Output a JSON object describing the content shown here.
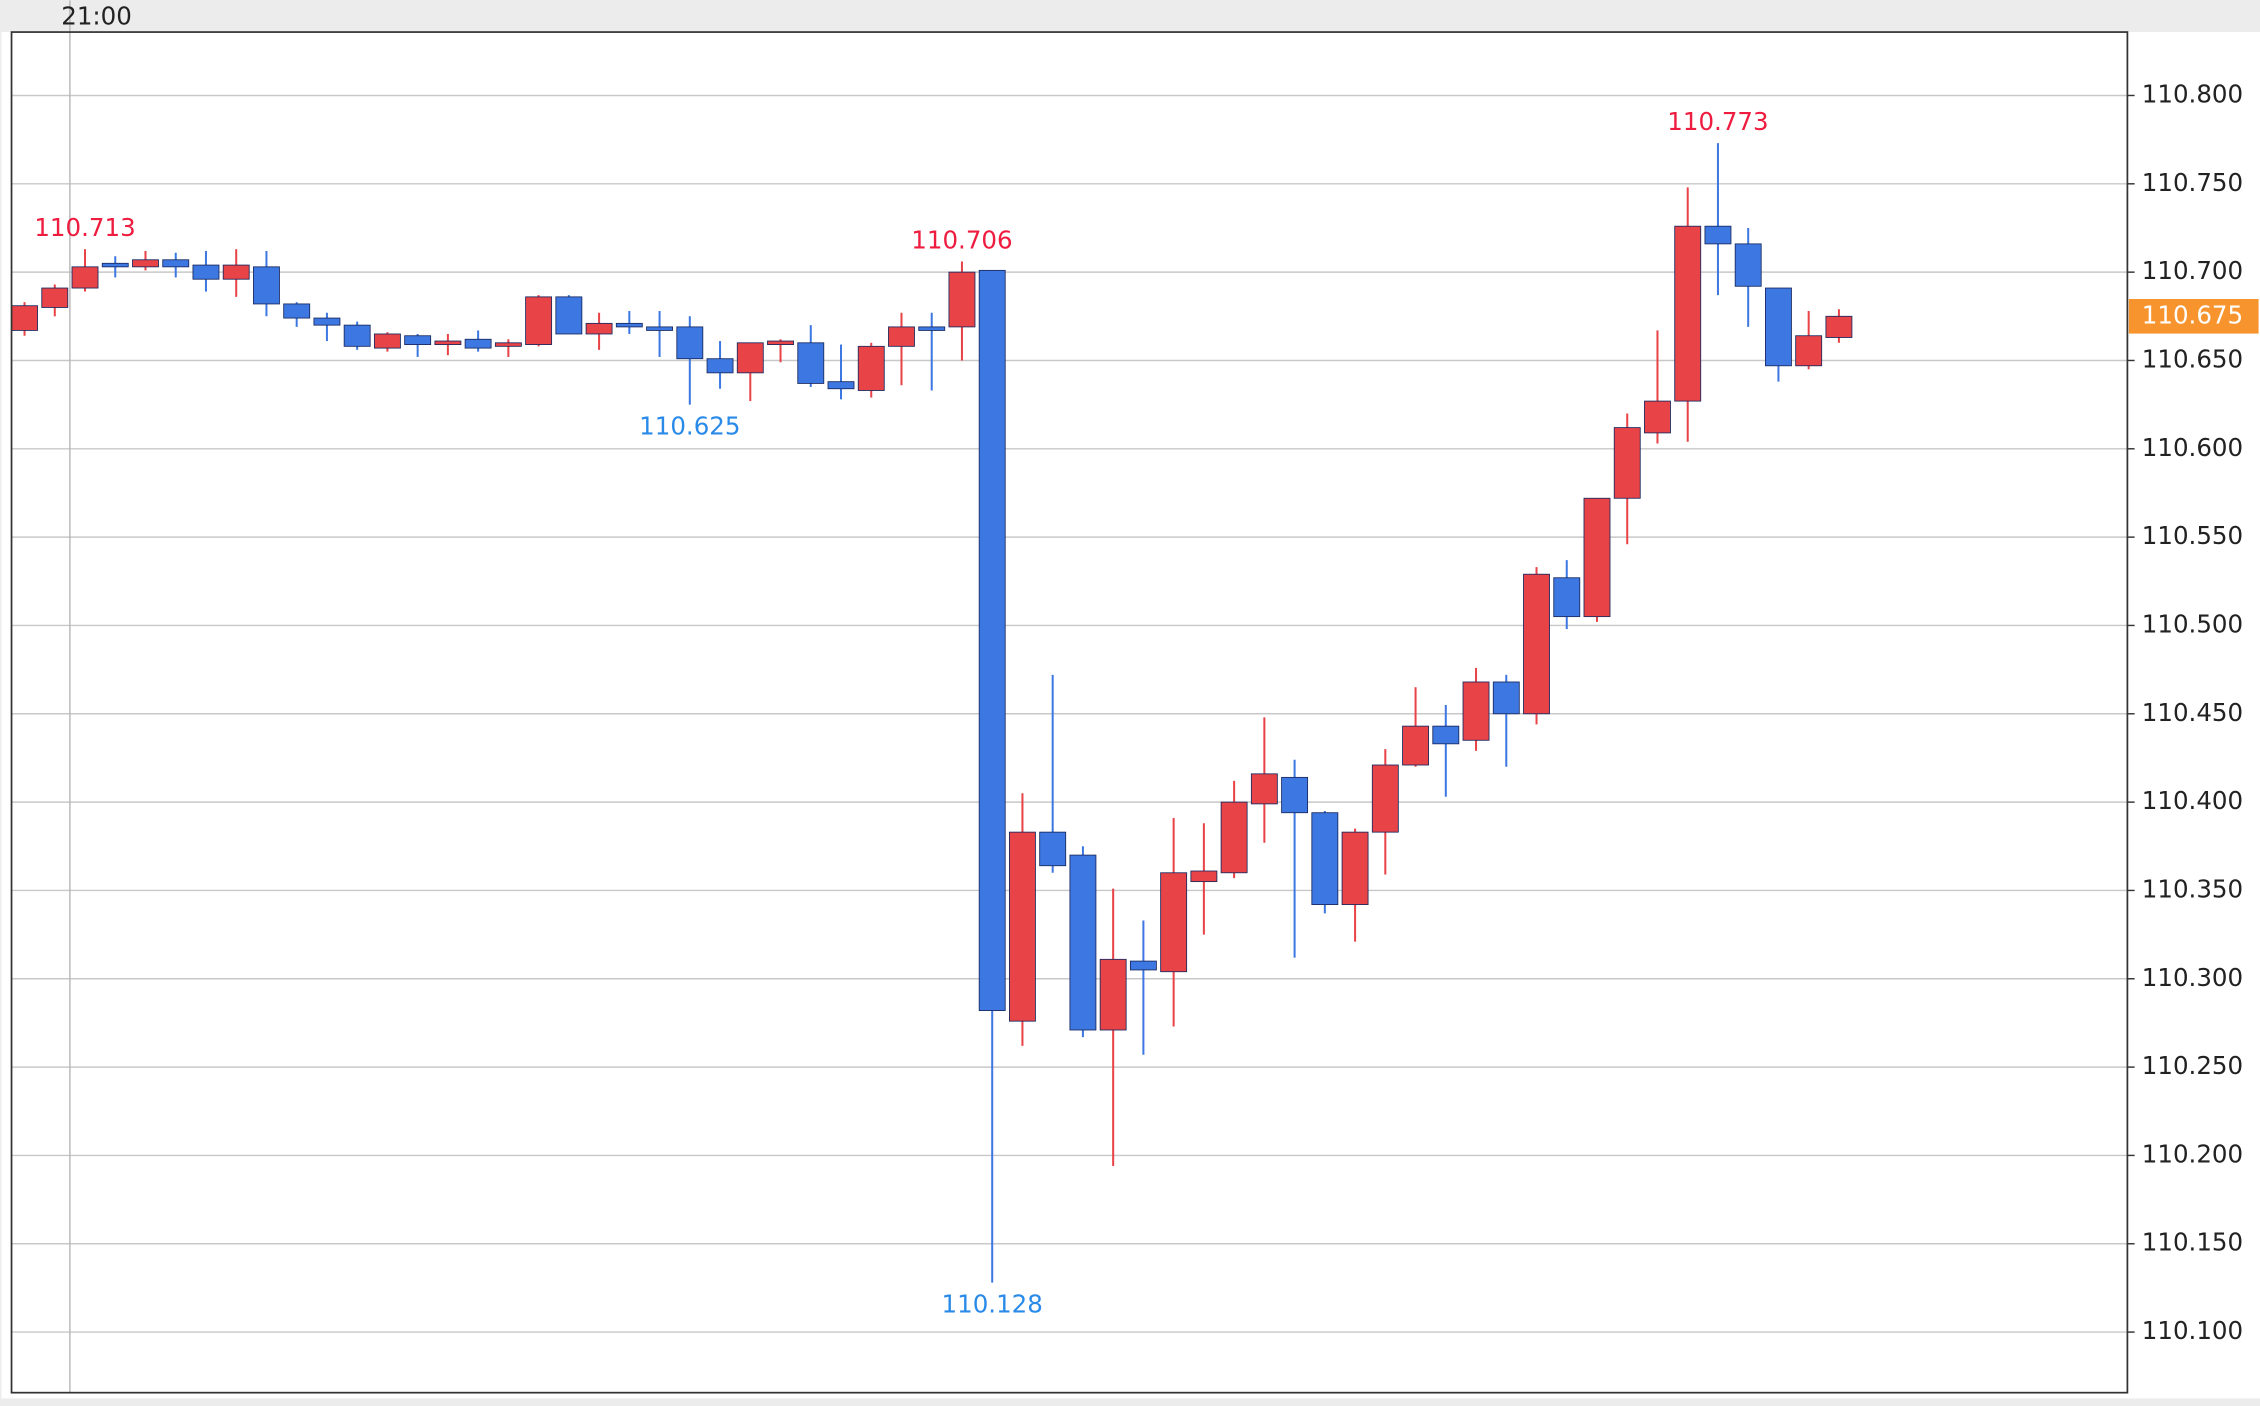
{
  "chart_data": {
    "type": "candlestick",
    "open": [
      110.667,
      110.68,
      110.691,
      110.705,
      110.703,
      110.707,
      110.704,
      110.696,
      110.703,
      110.682,
      110.674,
      110.67,
      110.657,
      110.664,
      110.659,
      110.662,
      110.658,
      110.659,
      110.686,
      110.665,
      110.671,
      110.669,
      110.669,
      110.651,
      110.643,
      110.659,
      110.66,
      110.638,
      110.633,
      110.658,
      110.669,
      110.669,
      110.701,
      110.276,
      110.383,
      110.37,
      110.271,
      110.31,
      110.304,
      110.355,
      110.36,
      110.399,
      110.414,
      110.394,
      110.342,
      110.383,
      110.421,
      110.443,
      110.435,
      110.468,
      110.45,
      110.527,
      110.505,
      110.572,
      110.609,
      110.627,
      110.726,
      110.716,
      110.691,
      110.647,
      110.663
    ],
    "high": [
      110.683,
      110.693,
      110.713,
      110.709,
      110.712,
      110.711,
      110.712,
      110.713,
      110.712,
      110.683,
      110.677,
      110.672,
      110.666,
      110.665,
      110.665,
      110.667,
      110.662,
      110.687,
      110.687,
      110.677,
      110.678,
      110.678,
      110.675,
      110.661,
      110.66,
      110.662,
      110.67,
      110.659,
      110.66,
      110.677,
      110.677,
      110.706,
      110.701,
      110.405,
      110.472,
      110.375,
      110.351,
      110.333,
      110.391,
      110.388,
      110.412,
      110.448,
      110.424,
      110.395,
      110.385,
      110.43,
      110.465,
      110.455,
      110.476,
      110.472,
      110.533,
      110.537,
      110.572,
      110.62,
      110.667,
      110.748,
      110.773,
      110.725,
      110.691,
      110.678,
      110.679
    ],
    "low": [
      110.664,
      110.675,
      110.689,
      110.697,
      110.701,
      110.697,
      110.689,
      110.686,
      110.675,
      110.669,
      110.661,
      110.656,
      110.655,
      110.652,
      110.653,
      110.655,
      110.652,
      110.658,
      110.665,
      110.656,
      110.665,
      110.652,
      110.625,
      110.634,
      110.627,
      110.649,
      110.635,
      110.628,
      110.629,
      110.636,
      110.633,
      110.65,
      110.128,
      110.262,
      110.36,
      110.267,
      110.194,
      110.257,
      110.273,
      110.325,
      110.357,
      110.377,
      110.312,
      110.337,
      110.321,
      110.359,
      110.42,
      110.403,
      110.429,
      110.42,
      110.444,
      110.498,
      110.502,
      110.546,
      110.603,
      110.604,
      110.687,
      110.669,
      110.638,
      110.645,
      110.66
    ],
    "close": [
      110.681,
      110.691,
      110.703,
      110.703,
      110.707,
      110.703,
      110.696,
      110.704,
      110.682,
      110.674,
      110.67,
      110.658,
      110.665,
      110.659,
      110.661,
      110.657,
      110.66,
      110.686,
      110.665,
      110.671,
      110.669,
      110.667,
      110.651,
      110.643,
      110.66,
      110.661,
      110.637,
      110.634,
      110.658,
      110.669,
      110.667,
      110.7,
      110.282,
      110.383,
      110.364,
      110.271,
      110.311,
      110.305,
      110.36,
      110.361,
      110.4,
      110.416,
      110.394,
      110.342,
      110.383,
      110.421,
      110.443,
      110.433,
      110.468,
      110.45,
      110.529,
      110.505,
      110.572,
      110.612,
      110.627,
      110.726,
      110.716,
      110.692,
      110.647,
      110.664,
      110.675
    ],
    "up_color": "#e84346",
    "down_color": "#3d78e2",
    "xlim": [
      -0.43,
      69.54
    ],
    "xticks": [
      {
        "value": 1.5,
        "label": "21:00"
      }
    ],
    "ylim": [
      110.0657,
      110.8359
    ],
    "yticks": [
      {
        "value": 110.1,
        "label": "110.100"
      },
      {
        "value": 110.15,
        "label": "110.150"
      },
      {
        "value": 110.2,
        "label": "110.200"
      },
      {
        "value": 110.25,
        "label": "110.250"
      },
      {
        "value": 110.3,
        "label": "110.300"
      },
      {
        "value": 110.35,
        "label": "110.350"
      },
      {
        "value": 110.4,
        "label": "110.400"
      },
      {
        "value": 110.45,
        "label": "110.450"
      },
      {
        "value": 110.5,
        "label": "110.500"
      },
      {
        "value": 110.55,
        "label": "110.550"
      },
      {
        "value": 110.6,
        "label": "110.600"
      },
      {
        "value": 110.65,
        "label": "110.650"
      },
      {
        "value": 110.7,
        "label": "110.700"
      },
      {
        "value": 110.75,
        "label": "110.750"
      },
      {
        "value": 110.8,
        "label": "110.800"
      }
    ],
    "grid": true,
    "annotations": [
      {
        "value": 110.713,
        "label": "110.713",
        "color": "#ee1c3f"
      },
      {
        "value": 110.625,
        "label": "110.625",
        "color": "#2a8ae8"
      },
      {
        "value": 110.706,
        "label": "110.706",
        "color": "#ee1c3f"
      },
      {
        "value": 110.128,
        "label": "110.128",
        "color": "#2a8ae8"
      },
      {
        "value": 110.773,
        "label": "110.773",
        "color": "#ee1c3f"
      }
    ],
    "last_price": {
      "value": 110.675,
      "label": "110.675",
      "color": "#f7942e"
    }
  }
}
